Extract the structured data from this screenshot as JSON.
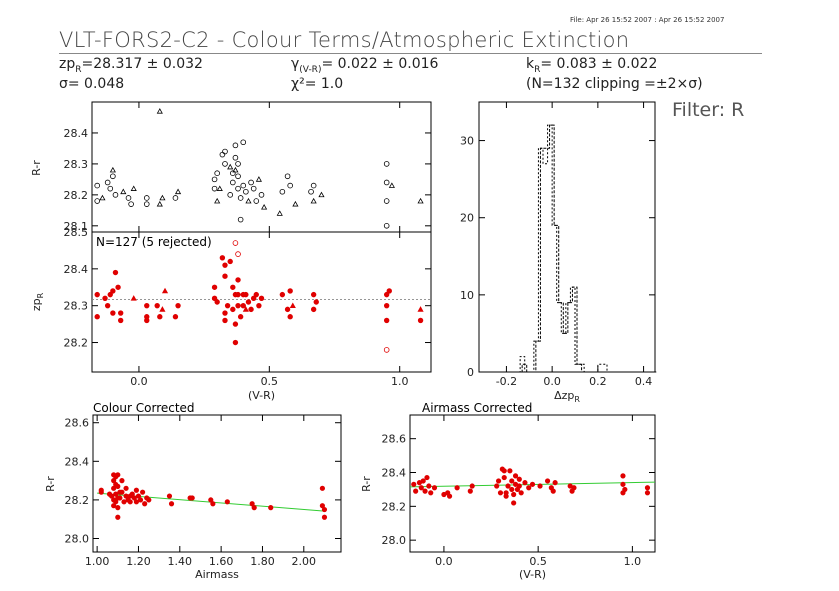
{
  "header": {
    "file_info": "File: Apr 26 15:52 2007 : Apr 26 15:52 2007",
    "title": "VLT-FORS2-C2 - Colour Terms/Atmospheric Extinction",
    "zp_label": "zp",
    "zp_sub": "R",
    "zp_value": "=28.317 ± 0.032",
    "sigma": "σ= 0.048",
    "gamma_label": "γ",
    "gamma_sub": "(V-R)",
    "gamma_value": "= 0.022 ± 0.016",
    "chi": "χ²= 1.0",
    "k_label": "k",
    "k_sub": "R",
    "k_value": "= 0.083 ± 0.022",
    "clip": "(N=132 clipping =±2×σ)",
    "filter": "Filter: R"
  },
  "chart_data": [
    {
      "id": "top",
      "type": "scatter",
      "ylabel": "R-r",
      "xlim": [
        -0.18,
        1.12
      ],
      "ylim": [
        28.08,
        28.5
      ],
      "yticks": [
        28.1,
        28.2,
        28.3,
        28.4
      ],
      "marker": "mixed",
      "points_circle": [
        [
          -0.16,
          28.23
        ],
        [
          -0.16,
          28.18
        ],
        [
          -0.12,
          28.24
        ],
        [
          -0.11,
          28.22
        ],
        [
          -0.1,
          28.26
        ],
        [
          -0.09,
          28.2
        ],
        [
          -0.04,
          28.19
        ],
        [
          -0.03,
          28.17
        ],
        [
          0.03,
          28.17
        ],
        [
          0.03,
          28.19
        ],
        [
          0.14,
          28.19
        ],
        [
          0.29,
          28.25
        ],
        [
          0.29,
          28.22
        ],
        [
          0.3,
          28.27
        ],
        [
          0.32,
          28.33
        ],
        [
          0.33,
          28.34
        ],
        [
          0.33,
          28.3
        ],
        [
          0.35,
          28.2
        ],
        [
          0.36,
          28.27
        ],
        [
          0.36,
          28.24
        ],
        [
          0.37,
          28.36
        ],
        [
          0.37,
          28.32
        ],
        [
          0.38,
          28.3
        ],
        [
          0.38,
          28.26
        ],
        [
          0.38,
          28.22
        ],
        [
          0.39,
          28.19
        ],
        [
          0.39,
          28.12
        ],
        [
          0.4,
          28.37
        ],
        [
          0.4,
          28.23
        ],
        [
          0.41,
          28.21
        ],
        [
          0.43,
          28.24
        ],
        [
          0.44,
          28.22
        ],
        [
          0.45,
          28.18
        ],
        [
          0.47,
          28.2
        ],
        [
          0.55,
          28.21
        ],
        [
          0.57,
          28.26
        ],
        [
          0.58,
          28.23
        ],
        [
          0.66,
          28.21
        ],
        [
          0.67,
          28.23
        ],
        [
          0.95,
          28.3
        ],
        [
          0.95,
          28.24
        ],
        [
          0.95,
          28.18
        ],
        [
          0.95,
          28.1
        ]
      ],
      "points_triangle": [
        [
          0.08,
          28.47
        ],
        [
          -0.14,
          28.19
        ],
        [
          -0.1,
          28.28
        ],
        [
          -0.06,
          28.21
        ],
        [
          -0.02,
          28.22
        ],
        [
          0.08,
          28.17
        ],
        [
          0.09,
          28.19
        ],
        [
          0.15,
          28.21
        ],
        [
          0.3,
          28.18
        ],
        [
          0.31,
          28.22
        ],
        [
          0.35,
          28.29
        ],
        [
          0.37,
          28.28
        ],
        [
          0.42,
          28.18
        ],
        [
          0.46,
          28.25
        ],
        [
          0.48,
          28.16
        ],
        [
          0.54,
          28.14
        ],
        [
          0.6,
          28.17
        ],
        [
          0.67,
          28.18
        ],
        [
          0.7,
          28.2
        ],
        [
          1.08,
          28.18
        ],
        [
          0.97,
          28.23
        ]
      ]
    },
    {
      "id": "mid",
      "type": "scatter",
      "annotation": "N=127 (5 rejected)",
      "ylabel": "zp",
      "ylabel_sub": "R",
      "xlabel": "(V-R)",
      "xlim": [
        -0.18,
        1.12
      ],
      "ylim": [
        28.12,
        28.5
      ],
      "yticks": [
        28.2,
        28.3,
        28.4,
        28.5
      ],
      "xticks": [
        0.0,
        0.5,
        1.0
      ],
      "xtick_labels": [
        "0.0",
        "0.5",
        "1.0"
      ],
      "reference_line": 28.317,
      "points": [
        [
          -0.16,
          28.33
        ],
        [
          -0.16,
          28.27
        ],
        [
          -0.13,
          28.32
        ],
        [
          -0.12,
          28.3
        ],
        [
          -0.11,
          28.33
        ],
        [
          -0.1,
          28.28
        ],
        [
          -0.1,
          28.34
        ],
        [
          -0.09,
          28.39
        ],
        [
          -0.08,
          28.35
        ],
        [
          -0.07,
          28.28
        ],
        [
          -0.07,
          28.26
        ],
        [
          0.03,
          28.27
        ],
        [
          0.03,
          28.3
        ],
        [
          0.03,
          28.26
        ],
        [
          0.07,
          28.3
        ],
        [
          0.08,
          28.27
        ],
        [
          0.14,
          28.27
        ],
        [
          0.15,
          28.3
        ],
        [
          0.29,
          28.32
        ],
        [
          0.29,
          28.35
        ],
        [
          0.3,
          28.31
        ],
        [
          0.32,
          28.43
        ],
        [
          0.33,
          28.41
        ],
        [
          0.33,
          28.38
        ],
        [
          0.33,
          28.28
        ],
        [
          0.33,
          28.26
        ],
        [
          0.34,
          28.3
        ],
        [
          0.35,
          28.42
        ],
        [
          0.36,
          28.35
        ],
        [
          0.36,
          28.29
        ],
        [
          0.37,
          28.33
        ],
        [
          0.37,
          28.25
        ],
        [
          0.37,
          28.2
        ],
        [
          0.38,
          28.37
        ],
        [
          0.38,
          28.33
        ],
        [
          0.38,
          28.3
        ],
        [
          0.39,
          28.27
        ],
        [
          0.4,
          28.33
        ],
        [
          0.4,
          28.3
        ],
        [
          0.41,
          28.33
        ],
        [
          0.42,
          28.31
        ],
        [
          0.43,
          28.29
        ],
        [
          0.44,
          28.32
        ],
        [
          0.45,
          28.33
        ],
        [
          0.46,
          28.3
        ],
        [
          0.47,
          28.32
        ],
        [
          0.55,
          28.33
        ],
        [
          0.57,
          28.29
        ],
        [
          0.58,
          28.34
        ],
        [
          0.58,
          28.27
        ],
        [
          0.67,
          28.29
        ],
        [
          0.67,
          28.33
        ],
        [
          0.68,
          28.31
        ],
        [
          0.95,
          28.33
        ],
        [
          0.95,
          28.3
        ],
        [
          0.95,
          28.26
        ],
        [
          0.96,
          28.34
        ],
        [
          1.08,
          28.26
        ]
      ],
      "triangles": [
        [
          0.1,
          28.34
        ],
        [
          -0.02,
          28.32
        ],
        [
          0.09,
          28.29
        ],
        [
          0.41,
          28.29
        ],
        [
          0.59,
          28.3
        ],
        [
          1.08,
          28.29
        ]
      ],
      "rejected": [
        [
          0.37,
          28.47
        ],
        [
          0.38,
          28.44
        ],
        [
          0.95,
          28.18
        ]
      ]
    },
    {
      "id": "hist",
      "type": "histogram",
      "xlabel": "Δzp",
      "xlabel_sub": "R",
      "xlim": [
        -0.32,
        0.45
      ],
      "ylim": [
        0,
        35
      ],
      "xticks": [
        -0.2,
        0.0,
        0.2,
        0.4
      ],
      "xtick_labels": [
        "-0.2",
        "0.0",
        "0.2",
        "0.4"
      ],
      "yticks": [
        0,
        10,
        20,
        30
      ],
      "bin_edges": [
        -0.32,
        -0.14,
        -0.12,
        -0.08,
        -0.06,
        -0.04,
        -0.02,
        0.0,
        0.02,
        0.04,
        0.06,
        0.08,
        0.1,
        0.12,
        0.14,
        0.16,
        0.18,
        0.2,
        0.22,
        0.24,
        0.26,
        0.28,
        0.45
      ],
      "counts_a": [
        0,
        2,
        0,
        4,
        29,
        27,
        32,
        19,
        9,
        5,
        9,
        11,
        1,
        1,
        0,
        0,
        0,
        1,
        1,
        0,
        0,
        0
      ],
      "counts_b": [
        0,
        1,
        0,
        4,
        29,
        29,
        32,
        19,
        9,
        5,
        9,
        11,
        1,
        0,
        0,
        0,
        0,
        0,
        0,
        0,
        0,
        0
      ]
    },
    {
      "id": "colour",
      "type": "scatter",
      "title": "Colour Corrected",
      "ylabel": "R-r",
      "xlabel": "Airmass",
      "xlim": [
        0.98,
        2.18
      ],
      "ylim": [
        27.93,
        28.64
      ],
      "yticks": [
        28.0,
        28.2,
        28.4,
        28.6
      ],
      "xticks": [
        1.0,
        1.2,
        1.4,
        1.6,
        1.8,
        2.0
      ],
      "xtick_labels": [
        "1.00",
        "1.20",
        "1.40",
        "1.60",
        "1.80",
        "2.00"
      ],
      "fit_line": [
        [
          1.0,
          28.235
        ],
        [
          2.1,
          28.142
        ]
      ],
      "points": [
        [
          1.02,
          28.25
        ],
        [
          1.02,
          28.24
        ],
        [
          1.06,
          28.23
        ],
        [
          1.07,
          28.22
        ],
        [
          1.08,
          28.33
        ],
        [
          1.08,
          28.3
        ],
        [
          1.08,
          28.26
        ],
        [
          1.08,
          28.2
        ],
        [
          1.08,
          28.17
        ],
        [
          1.09,
          28.32
        ],
        [
          1.09,
          28.28
        ],
        [
          1.09,
          28.23
        ],
        [
          1.09,
          28.19
        ],
        [
          1.1,
          28.33
        ],
        [
          1.1,
          28.27
        ],
        [
          1.1,
          28.21
        ],
        [
          1.1,
          28.16
        ],
        [
          1.1,
          28.11
        ],
        [
          1.11,
          28.24
        ],
        [
          1.11,
          28.21
        ],
        [
          1.12,
          28.3
        ],
        [
          1.12,
          28.24
        ],
        [
          1.13,
          28.19
        ],
        [
          1.14,
          28.26
        ],
        [
          1.14,
          28.22
        ],
        [
          1.15,
          28.2
        ],
        [
          1.16,
          28.22
        ],
        [
          1.16,
          28.19
        ],
        [
          1.17,
          28.23
        ],
        [
          1.18,
          28.21
        ],
        [
          1.19,
          28.25
        ],
        [
          1.19,
          28.19
        ],
        [
          1.2,
          28.22
        ],
        [
          1.21,
          28.2
        ],
        [
          1.22,
          28.24
        ],
        [
          1.23,
          28.18
        ],
        [
          1.24,
          28.21
        ],
        [
          1.25,
          28.2
        ],
        [
          1.35,
          28.22
        ],
        [
          1.36,
          28.18
        ],
        [
          1.45,
          28.21
        ],
        [
          1.46,
          28.21
        ],
        [
          1.55,
          28.2
        ],
        [
          1.56,
          28.18
        ],
        [
          1.63,
          28.19
        ],
        [
          1.75,
          28.18
        ],
        [
          1.76,
          28.16
        ],
        [
          1.84,
          28.16
        ],
        [
          2.09,
          28.26
        ],
        [
          2.09,
          28.17
        ],
        [
          2.1,
          28.15
        ],
        [
          2.1,
          28.11
        ]
      ]
    },
    {
      "id": "airmass",
      "type": "scatter",
      "title": "Airmass Corrected",
      "ylabel": "R-r",
      "xlabel": "(V-R)",
      "xlim": [
        -0.18,
        1.12
      ],
      "ylim": [
        27.93,
        28.74
      ],
      "yticks": [
        28.0,
        28.2,
        28.4,
        28.6
      ],
      "xticks": [
        0.0,
        0.5,
        1.0
      ],
      "xtick_labels": [
        "0.0",
        "0.5",
        "1.0"
      ],
      "fit_line": [
        [
          -0.18,
          28.315
        ],
        [
          1.12,
          28.343
        ]
      ],
      "points": [
        [
          -0.16,
          28.33
        ],
        [
          -0.15,
          28.29
        ],
        [
          -0.13,
          28.34
        ],
        [
          -0.12,
          28.31
        ],
        [
          -0.11,
          28.35
        ],
        [
          -0.1,
          28.29
        ],
        [
          -0.09,
          28.37
        ],
        [
          -0.08,
          28.32
        ],
        [
          -0.07,
          28.28
        ],
        [
          -0.05,
          28.31
        ],
        [
          0.0,
          28.27
        ],
        [
          0.02,
          28.28
        ],
        [
          0.03,
          28.26
        ],
        [
          0.07,
          28.31
        ],
        [
          0.14,
          28.29
        ],
        [
          0.15,
          28.32
        ],
        [
          0.28,
          28.32
        ],
        [
          0.29,
          28.35
        ],
        [
          0.3,
          28.28
        ],
        [
          0.31,
          28.42
        ],
        [
          0.32,
          28.41
        ],
        [
          0.32,
          28.37
        ],
        [
          0.33,
          28.28
        ],
        [
          0.33,
          28.26
        ],
        [
          0.34,
          28.32
        ],
        [
          0.35,
          28.41
        ],
        [
          0.36,
          28.35
        ],
        [
          0.36,
          28.3
        ],
        [
          0.37,
          28.27
        ],
        [
          0.37,
          28.22
        ],
        [
          0.38,
          28.38
        ],
        [
          0.38,
          28.33
        ],
        [
          0.39,
          28.3
        ],
        [
          0.4,
          28.36
        ],
        [
          0.4,
          28.32
        ],
        [
          0.41,
          28.28
        ],
        [
          0.43,
          28.34
        ],
        [
          0.45,
          28.31
        ],
        [
          0.47,
          28.33
        ],
        [
          0.51,
          28.32
        ],
        [
          0.55,
          28.35
        ],
        [
          0.57,
          28.31
        ],
        [
          0.58,
          28.29
        ],
        [
          0.59,
          28.34
        ],
        [
          0.67,
          28.32
        ],
        [
          0.68,
          28.29
        ],
        [
          0.69,
          28.31
        ],
        [
          0.95,
          28.38
        ],
        [
          0.95,
          28.33
        ],
        [
          0.95,
          28.28
        ],
        [
          0.96,
          28.3
        ],
        [
          1.08,
          28.31
        ],
        [
          1.08,
          28.28
        ]
      ]
    }
  ]
}
